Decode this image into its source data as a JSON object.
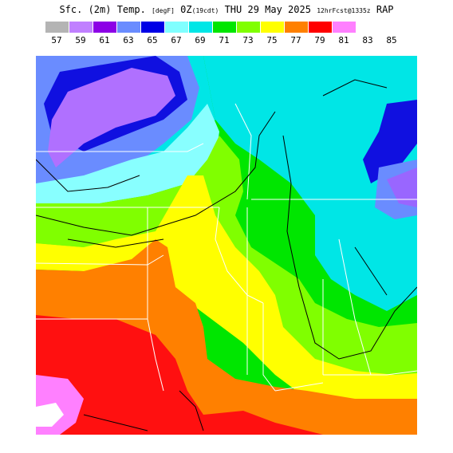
{
  "title": {
    "main": "Sfc. (2m) Temp. ",
    "unit": "[degF]",
    "time": " 0Z",
    "day_of_week": "(19cdt)",
    "date": " THU 29 May 2025 ",
    "forecast": "12hrFcst@1335z",
    "model": " RAP"
  },
  "legend": {
    "colors": [
      "#b4b4b4",
      "#c080ff",
      "#8c00e6",
      "#6a8cff",
      "#0000e6",
      "#80ffff",
      "#00e6e6",
      "#00e600",
      "#80ff00",
      "#ffff00",
      "#ff8000",
      "#ff0000",
      "#ff80ff",
      "#ffffff",
      "#ffffff"
    ],
    "labels": [
      "57",
      "59",
      "61",
      "63",
      "65",
      "67",
      "69",
      "71",
      "73",
      "75",
      "77",
      "79",
      "81",
      "83",
      "85"
    ]
  },
  "map_colors": {
    "purple_dark": "#9966ff",
    "purple": "#b070ff",
    "periwinkle": "#6a8cff",
    "blue": "#1010e0",
    "light_cyan": "#88ffff",
    "cyan": "#00e6e6",
    "green": "#00e600",
    "lime": "#80ff00",
    "yellow": "#ffff00",
    "orange": "#ff8000",
    "red": "#ff1010",
    "pink": "#ff80ff",
    "white": "#ffffff"
  }
}
